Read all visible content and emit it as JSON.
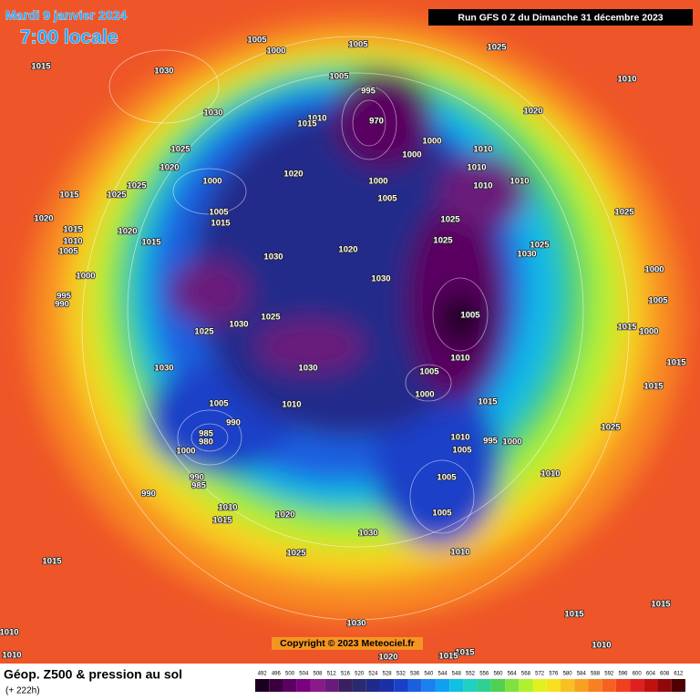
{
  "header": {
    "date": "Mardi 9 janvier 2024",
    "time": "7:00 locale",
    "run": "Run GFS 0 Z du Dimanche 31 décembre 2023"
  },
  "isobars": [
    1005,
    1000,
    1005,
    1025,
    1015,
    1030,
    1010,
    1005,
    995,
    1030,
    1010,
    1015,
    1020,
    970,
    1000,
    1010,
    1025,
    1000,
    1020,
    1020,
    1010,
    1025,
    1000,
    1000,
    1025,
    1015,
    1005,
    1010,
    1010,
    1005,
    1025,
    1020,
    1025,
    1015,
    1015,
    1020,
    1025,
    1015,
    1020,
    1025,
    1010,
    1005,
    1030,
    1030,
    1000,
    1030,
    1000,
    995,
    990,
    1005,
    1025,
    1030,
    1005,
    1025,
    1015,
    1000,
    1015,
    1030,
    1010,
    1030,
    1005,
    1015,
    1000,
    1005,
    1010,
    1015,
    990,
    985,
    980,
    1025,
    1010,
    995,
    1000,
    1000,
    1005,
    1010,
    1005,
    990,
    985,
    990,
    1010,
    1015,
    1020,
    1005,
    1030,
    1010,
    1025,
    1015,
    1015,
    1015,
    1030,
    1010,
    1010,
    1010,
    1015,
    1015,
    1020
  ],
  "footer": {
    "copyright": "Copyright © 2023 Meteociel.fr",
    "label": "Géop. Z500 & pression au sol",
    "lead": "(+ 222h)"
  },
  "legend": {
    "values": [
      492,
      496,
      500,
      504,
      508,
      512,
      516,
      520,
      524,
      528,
      532,
      536,
      540,
      544,
      548,
      552,
      556,
      560,
      564,
      568,
      572,
      576,
      580,
      584,
      588,
      592,
      596,
      600,
      604,
      608,
      612
    ],
    "colors": [
      "#1a0020",
      "#3a0040",
      "#5a0060",
      "#7a0080",
      "#8a1a8a",
      "#6a1a7a",
      "#3a2060",
      "#2a2a70",
      "#202a8a",
      "#1a30a8",
      "#1a40c8",
      "#1a60e0",
      "#1a80f0",
      "#10a0f0",
      "#10c0e0",
      "#20d0c0",
      "#30d090",
      "#50d050",
      "#80e040",
      "#b0f030",
      "#e0f020",
      "#f8e020",
      "#f8c020",
      "#f8a020",
      "#f88020",
      "#f86020",
      "#f04020",
      "#e02020",
      "#c01010",
      "#900808",
      "#500000"
    ]
  }
}
